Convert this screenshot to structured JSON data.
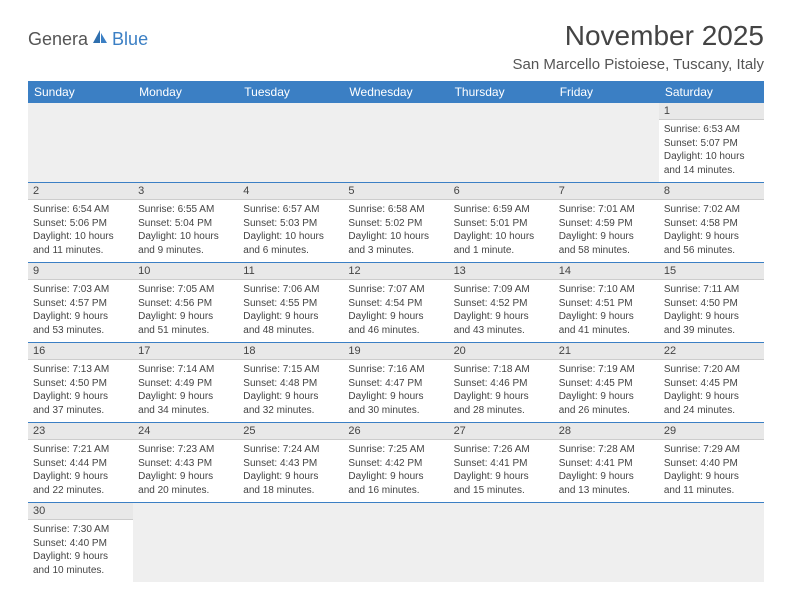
{
  "logo": {
    "text1": "Genera",
    "text2": "Blue"
  },
  "title": "November 2025",
  "location": "San Marcello Pistoiese, Tuscany, Italy",
  "colors": {
    "header_blue": "#3b7fc4",
    "row_separator": "#3b7fc4",
    "daynum_bg": "#e8e8e8",
    "empty_bg": "#efefef"
  },
  "dayHeaders": [
    "Sunday",
    "Monday",
    "Tuesday",
    "Wednesday",
    "Thursday",
    "Friday",
    "Saturday"
  ],
  "weeks": [
    [
      null,
      null,
      null,
      null,
      null,
      null,
      {
        "n": "1",
        "sunrise": "Sunrise: 6:53 AM",
        "sunset": "Sunset: 5:07 PM",
        "day1": "Daylight: 10 hours",
        "day2": "and 14 minutes."
      }
    ],
    [
      {
        "n": "2",
        "sunrise": "Sunrise: 6:54 AM",
        "sunset": "Sunset: 5:06 PM",
        "day1": "Daylight: 10 hours",
        "day2": "and 11 minutes."
      },
      {
        "n": "3",
        "sunrise": "Sunrise: 6:55 AM",
        "sunset": "Sunset: 5:04 PM",
        "day1": "Daylight: 10 hours",
        "day2": "and 9 minutes."
      },
      {
        "n": "4",
        "sunrise": "Sunrise: 6:57 AM",
        "sunset": "Sunset: 5:03 PM",
        "day1": "Daylight: 10 hours",
        "day2": "and 6 minutes."
      },
      {
        "n": "5",
        "sunrise": "Sunrise: 6:58 AM",
        "sunset": "Sunset: 5:02 PM",
        "day1": "Daylight: 10 hours",
        "day2": "and 3 minutes."
      },
      {
        "n": "6",
        "sunrise": "Sunrise: 6:59 AM",
        "sunset": "Sunset: 5:01 PM",
        "day1": "Daylight: 10 hours",
        "day2": "and 1 minute."
      },
      {
        "n": "7",
        "sunrise": "Sunrise: 7:01 AM",
        "sunset": "Sunset: 4:59 PM",
        "day1": "Daylight: 9 hours",
        "day2": "and 58 minutes."
      },
      {
        "n": "8",
        "sunrise": "Sunrise: 7:02 AM",
        "sunset": "Sunset: 4:58 PM",
        "day1": "Daylight: 9 hours",
        "day2": "and 56 minutes."
      }
    ],
    [
      {
        "n": "9",
        "sunrise": "Sunrise: 7:03 AM",
        "sunset": "Sunset: 4:57 PM",
        "day1": "Daylight: 9 hours",
        "day2": "and 53 minutes."
      },
      {
        "n": "10",
        "sunrise": "Sunrise: 7:05 AM",
        "sunset": "Sunset: 4:56 PM",
        "day1": "Daylight: 9 hours",
        "day2": "and 51 minutes."
      },
      {
        "n": "11",
        "sunrise": "Sunrise: 7:06 AM",
        "sunset": "Sunset: 4:55 PM",
        "day1": "Daylight: 9 hours",
        "day2": "and 48 minutes."
      },
      {
        "n": "12",
        "sunrise": "Sunrise: 7:07 AM",
        "sunset": "Sunset: 4:54 PM",
        "day1": "Daylight: 9 hours",
        "day2": "and 46 minutes."
      },
      {
        "n": "13",
        "sunrise": "Sunrise: 7:09 AM",
        "sunset": "Sunset: 4:52 PM",
        "day1": "Daylight: 9 hours",
        "day2": "and 43 minutes."
      },
      {
        "n": "14",
        "sunrise": "Sunrise: 7:10 AM",
        "sunset": "Sunset: 4:51 PM",
        "day1": "Daylight: 9 hours",
        "day2": "and 41 minutes."
      },
      {
        "n": "15",
        "sunrise": "Sunrise: 7:11 AM",
        "sunset": "Sunset: 4:50 PM",
        "day1": "Daylight: 9 hours",
        "day2": "and 39 minutes."
      }
    ],
    [
      {
        "n": "16",
        "sunrise": "Sunrise: 7:13 AM",
        "sunset": "Sunset: 4:50 PM",
        "day1": "Daylight: 9 hours",
        "day2": "and 37 minutes."
      },
      {
        "n": "17",
        "sunrise": "Sunrise: 7:14 AM",
        "sunset": "Sunset: 4:49 PM",
        "day1": "Daylight: 9 hours",
        "day2": "and 34 minutes."
      },
      {
        "n": "18",
        "sunrise": "Sunrise: 7:15 AM",
        "sunset": "Sunset: 4:48 PM",
        "day1": "Daylight: 9 hours",
        "day2": "and 32 minutes."
      },
      {
        "n": "19",
        "sunrise": "Sunrise: 7:16 AM",
        "sunset": "Sunset: 4:47 PM",
        "day1": "Daylight: 9 hours",
        "day2": "and 30 minutes."
      },
      {
        "n": "20",
        "sunrise": "Sunrise: 7:18 AM",
        "sunset": "Sunset: 4:46 PM",
        "day1": "Daylight: 9 hours",
        "day2": "and 28 minutes."
      },
      {
        "n": "21",
        "sunrise": "Sunrise: 7:19 AM",
        "sunset": "Sunset: 4:45 PM",
        "day1": "Daylight: 9 hours",
        "day2": "and 26 minutes."
      },
      {
        "n": "22",
        "sunrise": "Sunrise: 7:20 AM",
        "sunset": "Sunset: 4:45 PM",
        "day1": "Daylight: 9 hours",
        "day2": "and 24 minutes."
      }
    ],
    [
      {
        "n": "23",
        "sunrise": "Sunrise: 7:21 AM",
        "sunset": "Sunset: 4:44 PM",
        "day1": "Daylight: 9 hours",
        "day2": "and 22 minutes."
      },
      {
        "n": "24",
        "sunrise": "Sunrise: 7:23 AM",
        "sunset": "Sunset: 4:43 PM",
        "day1": "Daylight: 9 hours",
        "day2": "and 20 minutes."
      },
      {
        "n": "25",
        "sunrise": "Sunrise: 7:24 AM",
        "sunset": "Sunset: 4:43 PM",
        "day1": "Daylight: 9 hours",
        "day2": "and 18 minutes."
      },
      {
        "n": "26",
        "sunrise": "Sunrise: 7:25 AM",
        "sunset": "Sunset: 4:42 PM",
        "day1": "Daylight: 9 hours",
        "day2": "and 16 minutes."
      },
      {
        "n": "27",
        "sunrise": "Sunrise: 7:26 AM",
        "sunset": "Sunset: 4:41 PM",
        "day1": "Daylight: 9 hours",
        "day2": "and 15 minutes."
      },
      {
        "n": "28",
        "sunrise": "Sunrise: 7:28 AM",
        "sunset": "Sunset: 4:41 PM",
        "day1": "Daylight: 9 hours",
        "day2": "and 13 minutes."
      },
      {
        "n": "29",
        "sunrise": "Sunrise: 7:29 AM",
        "sunset": "Sunset: 4:40 PM",
        "day1": "Daylight: 9 hours",
        "day2": "and 11 minutes."
      }
    ],
    [
      {
        "n": "30",
        "sunrise": "Sunrise: 7:30 AM",
        "sunset": "Sunset: 4:40 PM",
        "day1": "Daylight: 9 hours",
        "day2": "and 10 minutes."
      },
      null,
      null,
      null,
      null,
      null,
      null
    ]
  ]
}
